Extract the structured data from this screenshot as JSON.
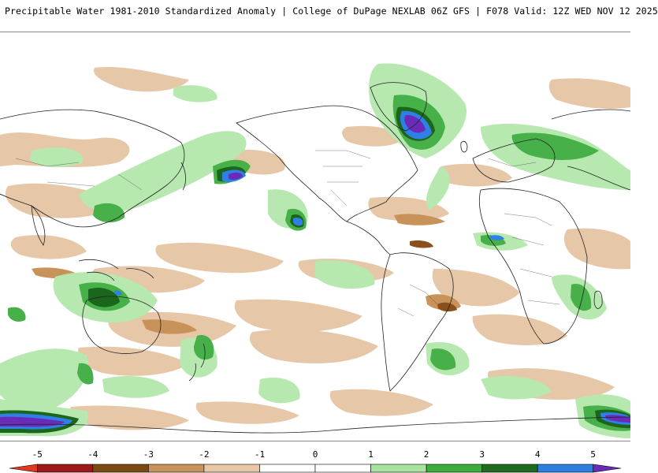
{
  "header": {
    "title_part1": "Precipitable Water 1981-2010 Standardized Anomaly",
    "title_part2": "College of DuPage NEXLAB",
    "title_part3": "06Z GFS",
    "title_part4": "F078 Valid: 12Z WED NOV 12 2025"
  },
  "colorbar": {
    "ticks": [
      "-5",
      "-4",
      "-3",
      "-2",
      "-1",
      "0",
      "1",
      "2",
      "3",
      "4",
      "5"
    ],
    "bins": [
      {
        "from": -5.5,
        "to": -5,
        "color": "#e03a1e"
      },
      {
        "from": -5,
        "to": -4,
        "color": "#9b1b1b"
      },
      {
        "from": -4,
        "to": -3,
        "color": "#7a4a12"
      },
      {
        "from": -3,
        "to": -2,
        "color": "#c8935a"
      },
      {
        "from": -2,
        "to": -1,
        "color": "#e8c7a6"
      },
      {
        "from": -1,
        "to": 0,
        "color": "#ffffff"
      },
      {
        "from": 0,
        "to": 1,
        "color": "#ffffff"
      },
      {
        "from": 1,
        "to": 2,
        "color": "#a9e3a0"
      },
      {
        "from": 2,
        "to": 3,
        "color": "#3cad3c"
      },
      {
        "from": 3,
        "to": 4,
        "color": "#1f6b1f"
      },
      {
        "from": 4,
        "to": 5,
        "color": "#2f7fe0"
      },
      {
        "from": 5,
        "to": 5.5,
        "color": "#6a2bb8"
      }
    ]
  },
  "map": {
    "coastline_color": "#222222",
    "land_border_color": "#333333",
    "colors": {
      "dry_light": "#e6c7a8",
      "dry_mid": "#c8935a",
      "dry_dark": "#8a4f1a",
      "wet_light": "#b6e8b0",
      "wet_mid": "#48b048",
      "wet_dark": "#1c661c",
      "wet_blue": "#2f80e6",
      "wet_purple": "#6a2bb8"
    }
  }
}
